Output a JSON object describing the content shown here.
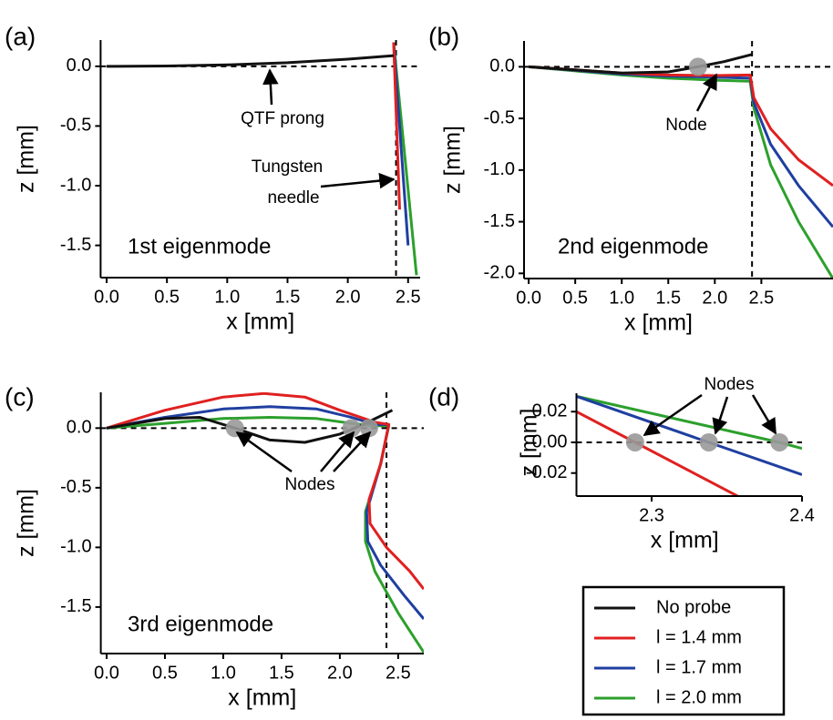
{
  "chart_data": [
    {
      "type": "line",
      "title": "(a)",
      "label": "1st eigenmode",
      "xlabel": "x [mm]",
      "ylabel": "z [mm]",
      "xlim": [
        -0.05,
        2.6
      ],
      "ylim": [
        -1.77,
        0.22
      ],
      "xticks": [
        {
          "value": 0,
          "label": "0.0"
        },
        0.5,
        {
          "value": 1,
          "label": "1.0"
        },
        1.5,
        {
          "value": 2,
          "label": "2.0"
        },
        2.5
      ],
      "yticks": [
        {
          "value": 0,
          "label": "0.0"
        },
        -0.5,
        {
          "value": -1,
          "label": "-1.0"
        },
        -1.5
      ],
      "hline": 0,
      "vline": 2.4,
      "series": [
        {
          "color": "#2ca02c",
          "x": [
            2.38,
            2.57
          ],
          "values": [
            0.2,
            -1.75
          ]
        },
        {
          "color": "#1f3fa0",
          "x": [
            2.38,
            2.5
          ],
          "values": [
            0.2,
            -1.5
          ]
        },
        {
          "color": "#e02020",
          "x": [
            2.38,
            2.43
          ],
          "values": [
            0.2,
            -1.2
          ]
        },
        {
          "color": "#111111",
          "x": [
            0,
            0.5,
            1,
            1.5,
            2,
            2.38
          ],
          "values": [
            0,
            0.003,
            0.012,
            0.03,
            0.06,
            0.09
          ]
        }
      ],
      "annotations": [
        {
          "lines": [
            "QTF prong"
          ]
        },
        {
          "lines": [
            "Tungsten",
            "needle"
          ]
        }
      ]
    },
    {
      "type": "line",
      "title": "(b)",
      "label": "2nd eigenmode",
      "xlabel": "x [mm]",
      "ylabel": "z [mm]",
      "xlim": [
        -0.05,
        3.27
      ],
      "ylim": [
        -2.05,
        0.25
      ],
      "xticks": [
        {
          "value": 0,
          "label": "0.0"
        },
        0.5,
        {
          "value": 1,
          "label": "1.0"
        },
        1.5,
        {
          "value": 2,
          "label": "2.0"
        },
        2.5
      ],
      "yticks": [
        {
          "value": 0,
          "label": "0.0"
        },
        -0.5,
        {
          "value": -1,
          "label": "-1.0"
        },
        -1.5,
        {
          "value": -2,
          "label": "-2.0"
        }
      ],
      "hline": 0,
      "vline": 2.4,
      "series": [
        {
          "color": "#2ca02c",
          "x": [
            0,
            0.5,
            1,
            1.5,
            2,
            2.38,
            2.42,
            2.6,
            2.9,
            3.27
          ],
          "values": [
            0,
            -0.04,
            -0.08,
            -0.11,
            -0.13,
            -0.14,
            -0.4,
            -0.95,
            -1.5,
            -2.05
          ]
        },
        {
          "color": "#1f3fa0",
          "x": [
            0,
            0.5,
            1,
            1.5,
            2,
            2.38,
            2.42,
            2.6,
            2.9,
            3.27
          ],
          "values": [
            0,
            -0.035,
            -0.07,
            -0.09,
            -0.1,
            -0.11,
            -0.35,
            -0.75,
            -1.15,
            -1.55
          ]
        },
        {
          "color": "#e02020",
          "x": [
            0,
            0.5,
            1,
            1.5,
            2,
            2.38,
            2.42,
            2.6,
            2.9,
            3.27
          ],
          "values": [
            0,
            -0.03,
            -0.06,
            -0.08,
            -0.085,
            -0.08,
            -0.3,
            -0.6,
            -0.9,
            -1.15
          ]
        },
        {
          "color": "#111111",
          "x": [
            0,
            0.5,
            1,
            1.5,
            1.82,
            2.1,
            2.4
          ],
          "values": [
            0,
            -0.03,
            -0.06,
            -0.05,
            0,
            0.05,
            0.12
          ]
        }
      ],
      "nodes": {
        "x": [
          1.82
        ],
        "values": [
          0
        ]
      },
      "annotations": [
        {
          "lines": [
            "Node"
          ]
        }
      ]
    },
    {
      "type": "line",
      "title": "(c)",
      "label": "3rd eigenmode",
      "xlabel": "x [mm]",
      "ylabel": "z [mm]",
      "xlim": [
        -0.05,
        2.72
      ],
      "ylim": [
        -1.89,
        0.3
      ],
      "xticks": [
        {
          "value": 0,
          "label": "0.0"
        },
        0.5,
        {
          "value": 1,
          "label": "1.0"
        },
        1.5,
        {
          "value": 2,
          "label": "2.0"
        },
        2.5
      ],
      "yticks": [
        {
          "value": 0,
          "label": "0.0"
        },
        -0.5,
        {
          "value": -1,
          "label": "-1.0"
        },
        -1.5
      ],
      "hline": 0,
      "vline": 2.4,
      "series": [
        {
          "color": "#2ca02c",
          "x": [
            0,
            0.5,
            1,
            1.4,
            1.8,
            2.1,
            2.3,
            2.42,
            2.35,
            2.22,
            2.22,
            2.3,
            2.5,
            2.72
          ],
          "values": [
            0,
            0.04,
            0.08,
            0.09,
            0.08,
            0.04,
            0.02,
            0.02,
            -0.3,
            -0.7,
            -0.95,
            -1.2,
            -1.55,
            -1.88
          ]
        },
        {
          "color": "#1f3fa0",
          "x": [
            0,
            0.5,
            1,
            1.4,
            1.8,
            2.1,
            2.3,
            2.42,
            2.35,
            2.23,
            2.24,
            2.35,
            2.55,
            2.72
          ],
          "values": [
            0,
            0.09,
            0.16,
            0.18,
            0.16,
            0.09,
            0.03,
            0.03,
            -0.3,
            -0.7,
            -0.95,
            -1.15,
            -1.4,
            -1.6
          ]
        },
        {
          "color": "#e02020",
          "x": [
            0,
            0.5,
            1,
            1.35,
            1.7,
            2.0,
            2.3,
            2.42,
            2.35,
            2.25,
            2.26,
            2.4,
            2.6,
            2.72
          ],
          "values": [
            0,
            0.15,
            0.26,
            0.29,
            0.26,
            0.15,
            0.05,
            0.03,
            -0.3,
            -0.6,
            -0.8,
            -1.0,
            -1.2,
            -1.35
          ]
        },
        {
          "color": "#111111",
          "x": [
            0,
            0.5,
            0.8,
            1.1,
            1.4,
            1.7,
            2.0,
            2.2,
            2.45
          ],
          "values": [
            0,
            0.08,
            0.09,
            0,
            -0.1,
            -0.12,
            -0.05,
            0.03,
            0.15
          ]
        }
      ],
      "nodes": {
        "x": [
          1.1,
          2.1,
          2.25
        ],
        "values": [
          0,
          0,
          0
        ]
      },
      "annotations": [
        {
          "lines": [
            "Nodes"
          ]
        }
      ]
    },
    {
      "type": "line",
      "title": "(d)",
      "xlabel": "x [mm]",
      "ylabel": "z [mm]",
      "xlim": [
        2.25,
        2.4
      ],
      "ylim": [
        -0.035,
        0.032
      ],
      "xticks": [
        2.3,
        2.4
      ],
      "yticks": [
        0.02,
        {
          "value": 0,
          "label": "0.00"
        },
        -0.02
      ],
      "hline": 0,
      "series": [
        {
          "color": "#2ca02c",
          "x": [
            2.25,
            2.385,
            2.4
          ],
          "values": [
            0.03,
            0,
            -0.004
          ]
        },
        {
          "color": "#1f3fa0",
          "x": [
            2.25,
            2.338,
            2.4
          ],
          "values": [
            0.03,
            0,
            -0.021
          ]
        },
        {
          "color": "#e02020",
          "x": [
            2.25,
            2.289,
            2.36
          ],
          "values": [
            0.02,
            0,
            -0.0365
          ]
        }
      ],
      "nodes": {
        "x": [
          2.289,
          2.338,
          2.385
        ],
        "values": [
          0,
          0,
          0
        ]
      },
      "annotations": [
        {
          "lines": [
            "Nodes"
          ]
        }
      ]
    }
  ],
  "legend": {
    "items": [
      {
        "name": "No probe",
        "color": "#111111"
      },
      {
        "name": "l = 1.4 mm",
        "color": "#e02020"
      },
      {
        "name": "l = 1.7 mm",
        "color": "#1f3fa0"
      },
      {
        "name": "l = 2.0 mm",
        "color": "#2ca02c"
      }
    ]
  }
}
